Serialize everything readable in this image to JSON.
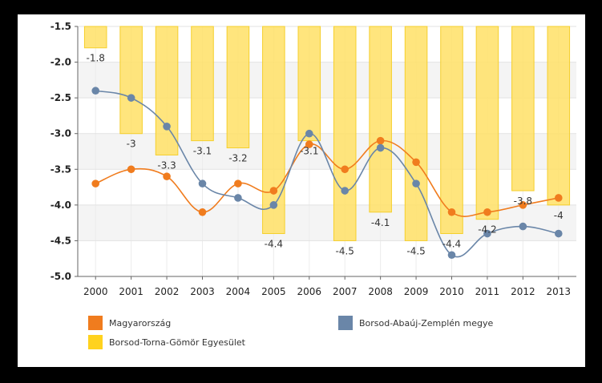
{
  "chart_data": {
    "type": "bar+line",
    "categories": [
      "2000",
      "2001",
      "2002",
      "2003",
      "2004",
      "2005",
      "2006",
      "2007",
      "2008",
      "2009",
      "2010",
      "2011",
      "2012",
      "2013"
    ],
    "ylim": [
      -5.0,
      -1.5
    ],
    "yticks": [
      "-1.5",
      "-2.0",
      "-2.5",
      "-3.0",
      "-3.5",
      "-4.0",
      "-4.5",
      "-5.0"
    ],
    "grid": "horizontal bands",
    "legend_position": "bottom",
    "series": [
      {
        "name": "Borsod-Torna-Gömör Egyesület",
        "type": "bar",
        "color": "#ffe066",
        "values": [
          -1.8,
          -3,
          -3.3,
          -3.1,
          -3.2,
          -4.4,
          -3.1,
          -4.5,
          -4.1,
          -4.5,
          -4.4,
          -4.2,
          -3.8,
          -4
        ],
        "labels": [
          "-1.8",
          "-3",
          "-3.3",
          "-3.1",
          "-3.2",
          "-4.4",
          "-3.1",
          "-4.5",
          "-4.1",
          "-4.5",
          "-4.4",
          "-4.2",
          "-3.8",
          "-4"
        ]
      },
      {
        "name": "Magyarország",
        "type": "line",
        "color": "#f07c1e",
        "values": [
          -3.7,
          -3.5,
          -3.6,
          -4.1,
          -3.7,
          -3.8,
          -3.15,
          -3.5,
          -3.1,
          -3.4,
          -4.1,
          -4.1,
          -4.0,
          -3.9
        ]
      },
      {
        "name": "Borsod-Abaúj-Zemplén megye",
        "type": "line",
        "color": "#6a86a8",
        "values": [
          -2.4,
          -2.5,
          -2.9,
          -3.7,
          -3.9,
          -4.0,
          -3.0,
          -3.8,
          -3.2,
          -3.7,
          -4.7,
          -4.4,
          -4.3,
          -4.4
        ]
      }
    ]
  },
  "legend": {
    "items": [
      {
        "label": "Magyarország",
        "color": "#f07c1e"
      },
      {
        "label": "Borsod-Abaúj-Zemplén megye",
        "color": "#6a86a8"
      },
      {
        "label": "Borsod-Torna-Gömör Egyesület",
        "color": "#ffd21e"
      }
    ]
  }
}
